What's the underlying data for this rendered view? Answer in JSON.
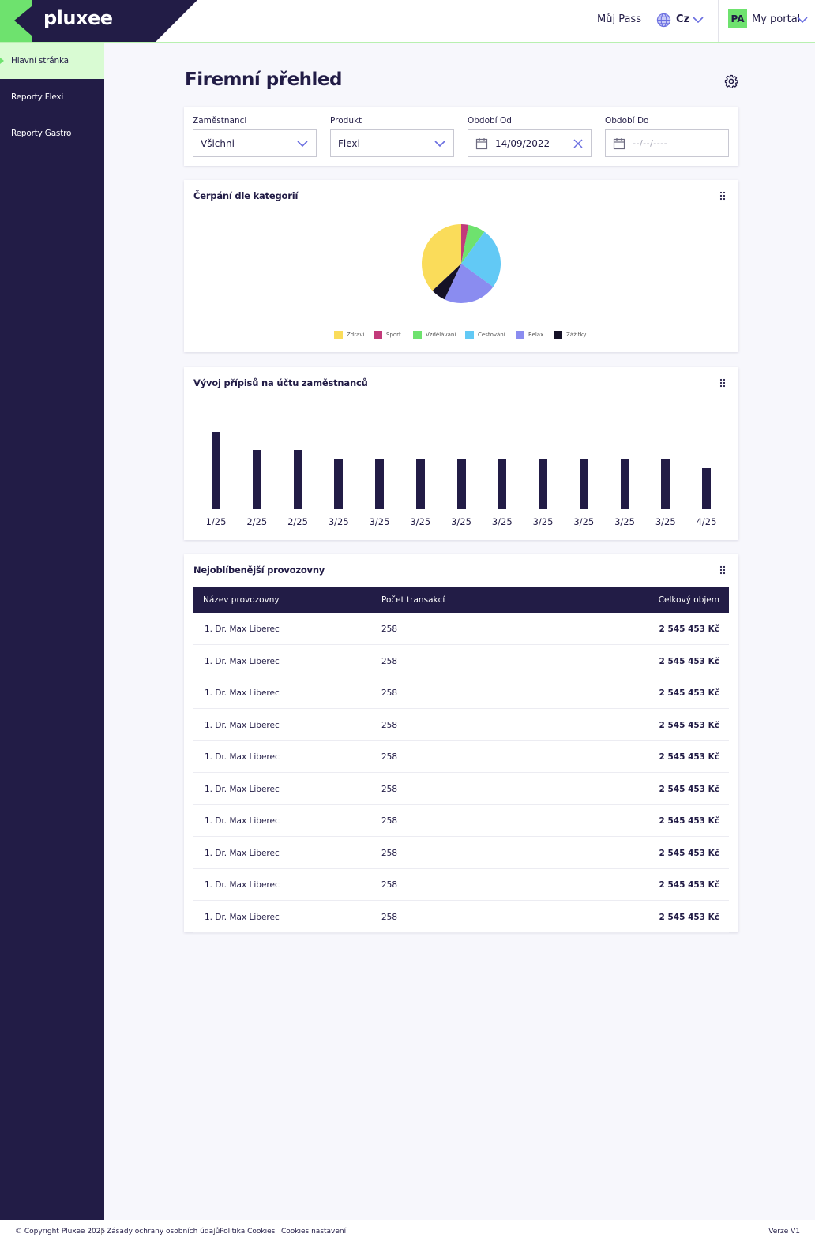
{
  "header": {
    "logo": "pluxee",
    "my_pass": "Můj Pass",
    "language": "Cz",
    "avatar_initials": "PA",
    "portal": "My portal"
  },
  "sidebar": {
    "items": [
      {
        "label": "Hlavní stránka",
        "active": true
      },
      {
        "label": "Reporty Flexi",
        "active": false
      },
      {
        "label": "Reporty Gastro",
        "active": false
      }
    ]
  },
  "main": {
    "title": "Firemní přehled"
  },
  "filters": {
    "employees": {
      "label": "Zaměstnanci",
      "value": "Všichni"
    },
    "product": {
      "label": "Produkt",
      "value": "Flexi"
    },
    "period_from": {
      "label": "Období Od",
      "value": "14/09/2022"
    },
    "period_to": {
      "label": "Období Do",
      "placeholder": "--/--/----"
    }
  },
  "pie_card": {
    "title": "Čerpání dle kategorií"
  },
  "bar_card": {
    "title": "Vývoj přípisů na účtu zaměstnanců"
  },
  "chart_data": [
    {
      "type": "pie",
      "title": "Čerpání dle kategorií",
      "series": [
        {
          "name": "Zdraví",
          "value": 37,
          "color": "#fadc5a"
        },
        {
          "name": "Sport",
          "value": 3,
          "color": "#c23a7a"
        },
        {
          "name": "Vzdělávání",
          "value": 7,
          "color": "#6ee26e"
        },
        {
          "name": "Cestování",
          "value": 25,
          "color": "#62c9f5"
        },
        {
          "name": "Relax",
          "value": 22,
          "color": "#8a8cf0"
        },
        {
          "name": "Zážitky",
          "value": 6,
          "color": "#151126"
        }
      ],
      "legend": "bottom"
    },
    {
      "type": "bar",
      "title": "Vývoj přípisů na účtu zaměstnanců",
      "categories": [
        "1/25",
        "2/25",
        "2/25",
        "3/25",
        "3/25",
        "3/25",
        "3/25",
        "3/25",
        "3/25",
        "3/25",
        "3/25",
        "3/25",
        "4/25"
      ],
      "values": [
        100,
        77,
        77,
        65,
        65,
        65,
        65,
        65,
        65,
        65,
        65,
        65,
        53
      ],
      "color": "#221c46",
      "grid": false
    }
  ],
  "table_card": {
    "title": "Nejoblíbenější provozovny",
    "columns": [
      "Název provozovny",
      "Počet transakcí",
      "Celkový objem"
    ],
    "rows": [
      [
        "1. Dr. Max Liberec",
        "258",
        "2 545 453 Kč"
      ],
      [
        "1. Dr. Max Liberec",
        "258",
        "2 545 453 Kč"
      ],
      [
        "1. Dr. Max Liberec",
        "258",
        "2 545 453 Kč"
      ],
      [
        "1. Dr. Max Liberec",
        "258",
        "2 545 453 Kč"
      ],
      [
        "1. Dr. Max Liberec",
        "258",
        "2 545 453 Kč"
      ],
      [
        "1. Dr. Max Liberec",
        "258",
        "2 545 453 Kč"
      ],
      [
        "1. Dr. Max Liberec",
        "258",
        "2 545 453 Kč"
      ],
      [
        "1. Dr. Max Liberec",
        "258",
        "2 545 453 Kč"
      ],
      [
        "1. Dr. Max Liberec",
        "258",
        "2 545 453 Kč"
      ],
      [
        "1. Dr. Max Liberec",
        "258",
        "2 545 453 Kč"
      ]
    ]
  },
  "footer": {
    "copyright": "© Copyright Pluxee 2025",
    "privacy": "Zásady ochrany osobních údajů",
    "cookies_policy": "Politika Cookies",
    "cookies_settings": "Cookies nastavení",
    "version": "Verze V1"
  },
  "icons": {
    "globe": "globe-icon",
    "chevron": "chevron-down-icon",
    "gear": "gear-icon",
    "calendar": "calendar-icon",
    "clear": "close-icon",
    "drag": "drag-handle-icon"
  }
}
